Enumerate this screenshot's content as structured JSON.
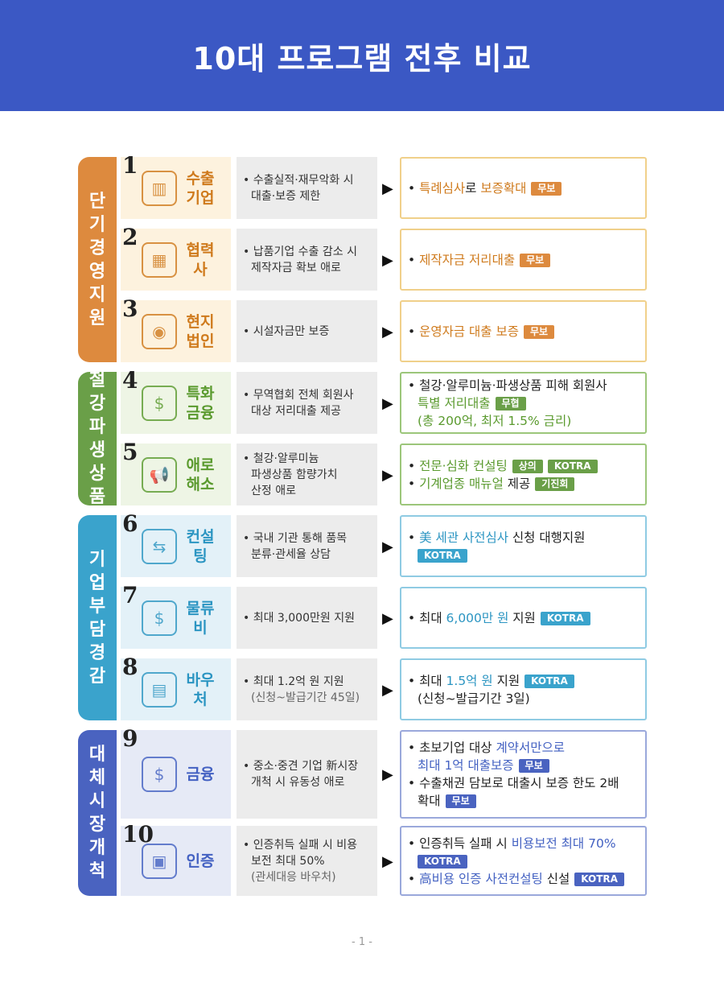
{
  "title": "10대 프로그램 전후 비교",
  "page_number": "- 1 -",
  "groups": [
    {
      "name": "단기경영지원",
      "color": "#dd8a3e",
      "text": "#cf7a1c",
      "bg": "#fdf2de",
      "border": "#f0d08a",
      "rows": [
        {
          "num": "1",
          "icon": "building-icon",
          "label": "수출\n기업",
          "before": [
            "수출실적·재무악화 시",
            "대출·보증 제한"
          ],
          "after": [
            [
              {
                "t": "특례심사",
                "h": 1
              },
              {
                "t": "로 "
              },
              {
                "t": "보증확대",
                "h": 1
              },
              {
                "b": "무보"
              }
            ]
          ]
        },
        {
          "num": "2",
          "icon": "cooperation-building-icon",
          "label": "협력사",
          "before": [
            "납품기업 수출 감소 시",
            "제작자금 확보 애로"
          ],
          "after": [
            [
              {
                "t": "제작자금 저리대출",
                "h": 1
              },
              {
                "b": "무보"
              }
            ]
          ]
        },
        {
          "num": "3",
          "icon": "location-pin-icon",
          "label": "현지\n법인",
          "before": [
            "시설자금만 보증"
          ],
          "after": [
            [
              {
                "t": "운영자금 대출 보증",
                "h": 1
              },
              {
                "b": "무보"
              }
            ]
          ]
        }
      ]
    },
    {
      "name": "철강파생상품",
      "color": "#6a9f48",
      "text": "#5a9a2e",
      "bg": "#eef5e5",
      "border": "#9cc67a",
      "rows": [
        {
          "num": "4",
          "icon": "money-bag-icon",
          "label": "특화\n금융",
          "before": [
            "무역협회 전체 회원사",
            "대상 저리대출 제공"
          ],
          "after": [
            [
              {
                "t": "철강·알루미늄·파생상품 피해 회원사"
              }
            ],
            [
              {
                "t": "특별 저리대출",
                "h": 1
              },
              {
                "b": "무협"
              }
            ],
            [
              {
                "t": "(총 200억, 최저 1.5% 금리)",
                "h": 1
              }
            ]
          ]
        },
        {
          "num": "5",
          "icon": "megaphone-icon",
          "label": "애로\n해소",
          "before": [
            "철강·알루미늄",
            "파생상품 함량가치",
            "산정 애로"
          ],
          "after": [
            [
              {
                "t": "전문·심화 컨설팅",
                "h": 1
              },
              {
                "b": "상의"
              },
              {
                "b": "KOTRA"
              }
            ],
            [
              {
                "t": "기계업종 매뉴얼",
                "h": 1
              },
              {
                "t": " 제공"
              },
              {
                "b": "기진회"
              }
            ]
          ]
        }
      ]
    },
    {
      "name": "기업부담경감",
      "color": "#3aa3cc",
      "text": "#2b95c2",
      "bg": "#e3f1f8",
      "border": "#8fcbe3",
      "rows": [
        {
          "num": "6",
          "icon": "signpost-icon",
          "label": "컨설팅",
          "before": [
            "국내 기관 통해 품목",
            "분류·관세율 상담"
          ],
          "after": [
            [
              {
                "t": "美 세관 사전심사",
                "h": 1
              },
              {
                "t": " 신청 대행지원"
              }
            ],
            [
              {
                "b": "KOTRA"
              }
            ]
          ]
        },
        {
          "num": "7",
          "icon": "coin-hand-icon",
          "label": "물류비",
          "before": [
            "최대 3,000만원 지원"
          ],
          "after": [
            [
              {
                "t": "최대 "
              },
              {
                "t": "6,000만 원",
                "h": 1
              },
              {
                "t": " 지원"
              },
              {
                "b": "KOTRA"
              }
            ]
          ]
        },
        {
          "num": "8",
          "icon": "voucher-icon",
          "label": "바우처",
          "before": [
            "최대 1.2억 원 지원",
            "(신청~발급기간 45일)"
          ],
          "after": [
            [
              {
                "t": "최대 "
              },
              {
                "t": "1.5억 원",
                "h": 1
              },
              {
                "t": " 지원"
              },
              {
                "b": "KOTRA"
              }
            ],
            [
              {
                "t": "(신청~발급기간 3일)"
              }
            ]
          ]
        }
      ]
    },
    {
      "name": "대체시장개척",
      "color": "#4a63c0",
      "text": "#4361c2",
      "bg": "#e6eaf6",
      "border": "#9aa8db",
      "rows": [
        {
          "num": "9",
          "icon": "finance-icon",
          "label": "금융",
          "before": [
            "중소·중견 기업 新시장",
            "개척 시 유동성 애로"
          ],
          "after": [
            [
              {
                "t": "초보기업 대상 "
              },
              {
                "t": "계약서만으로",
                "h": 1
              }
            ],
            [
              {
                "t": "최대 1억 대출보증",
                "h": 1
              },
              {
                "b": "무보"
              }
            ],
            [
              {
                "t": "수출채권 담보로 대출시 보증 한도 2배"
              }
            ],
            [
              {
                "t": "확대"
              },
              {
                "b": "무보"
              }
            ]
          ]
        },
        {
          "num": "10",
          "icon": "certificate-icon",
          "label": "인증",
          "before": [
            "인증취득 실패 시 비용",
            "보전 최대 50%",
            "(관세대응 바우처)"
          ],
          "after": [
            [
              {
                "t": "인증취득 실패 시 "
              },
              {
                "t": "비용보전 최대 70%",
                "h": 1
              }
            ],
            [
              {
                "b": "KOTRA"
              }
            ],
            [
              {
                "t": "高비용 인증 사전컨설팅",
                "h": 1
              },
              {
                "t": " 신설"
              },
              {
                "b": "KOTRA"
              }
            ]
          ]
        }
      ]
    }
  ]
}
